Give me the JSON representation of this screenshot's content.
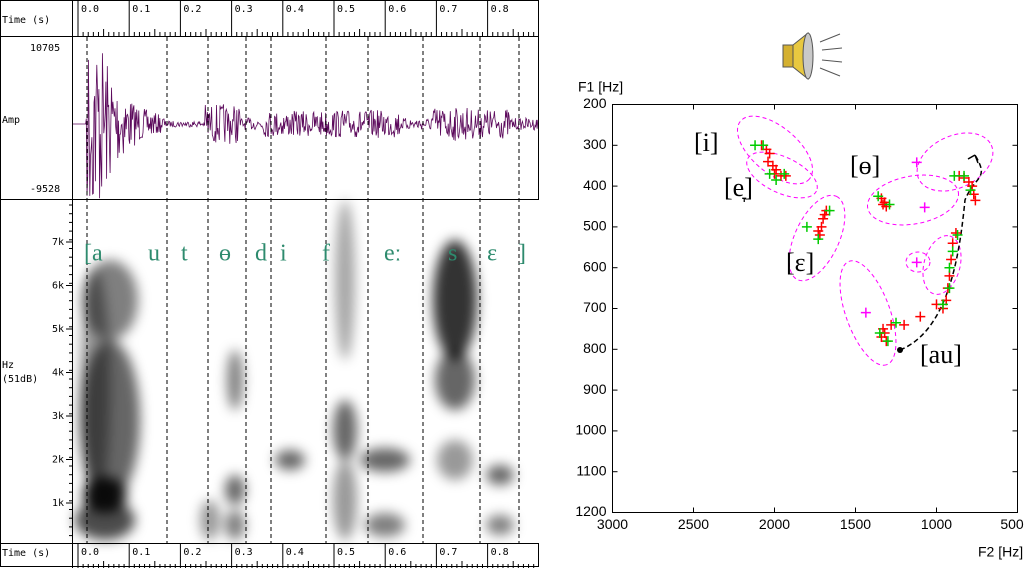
{
  "time_axis": {
    "label": "Time (s)",
    "ticks": [
      "0.0",
      "0.1",
      "0.2",
      "0.3",
      "0.4",
      "0.5",
      "0.6",
      "0.7",
      "0.8"
    ]
  },
  "waveform": {
    "max_label": "10705",
    "axis_label": "Amp",
    "min_label": "-9528"
  },
  "spectrogram": {
    "axis_label": "Hz",
    "db_label": "(51dB)",
    "ticks": [
      "7k",
      "6k",
      "5k",
      "4k",
      "3k",
      "2k",
      "1k"
    ],
    "segments": [
      "[a",
      "u",
      "t",
      "ɵ",
      "d",
      "i",
      "f",
      "eː",
      "s",
      "ɛ",
      "]"
    ]
  },
  "chart_data": {
    "type": "scatter",
    "x_label": "F2 [Hz]",
    "y_label": "F1 [Hz]",
    "xlim": [
      3000,
      500
    ],
    "ylim": [
      200,
      1200
    ],
    "xticks": [
      3000,
      2500,
      2000,
      1500,
      1000,
      500
    ],
    "yticks": [
      200,
      300,
      400,
      500,
      600,
      700,
      800,
      900,
      1000,
      1100,
      1200
    ],
    "annotations": [
      "[i]",
      "[e̞]",
      "[ɛ]",
      "[ɵ]",
      "[au]"
    ],
    "series": [
      {
        "color": "#ff0000",
        "x": [
          2080,
          2050,
          2030,
          2040,
          2010,
          1990,
          2000,
          1960,
          1930,
          1700,
          1710,
          1730,
          1720,
          1690,
          1680,
          1340,
          1320,
          1310,
          1330,
          860,
          830,
          800,
          780,
          770,
          760,
          880,
          900,
          910,
          920,
          930,
          940,
          960,
          1000,
          1100,
          1200,
          1280,
          1320,
          1340,
          1310,
          1330
        ],
        "values": [
          300,
          310,
          320,
          340,
          350,
          360,
          370,
          375,
          375,
          480,
          500,
          510,
          520,
          470,
          460,
          430,
          440,
          450,
          445,
          375,
          380,
          390,
          400,
          420,
          435,
          515,
          540,
          580,
          620,
          650,
          680,
          700,
          690,
          720,
          740,
          740,
          760,
          770,
          780,
          750
        ]
      },
      {
        "color": "#00cc00",
        "x": [
          2120,
          2070,
          2030,
          1990,
          1940,
          1800,
          1730,
          1660,
          1360,
          1290,
          890,
          830,
          790,
          870,
          900,
          920,
          920,
          960,
          1250,
          1350,
          1300
        ],
        "values": [
          300,
          300,
          370,
          385,
          370,
          500,
          530,
          460,
          425,
          445,
          375,
          375,
          410,
          520,
          560,
          600,
          650,
          690,
          735,
          760,
          780
        ]
      },
      {
        "color": "#ff00ff",
        "x": [
          1122,
          1073,
          1122,
          1436
        ],
        "values": [
          342,
          452,
          587,
          710
        ]
      }
    ]
  }
}
